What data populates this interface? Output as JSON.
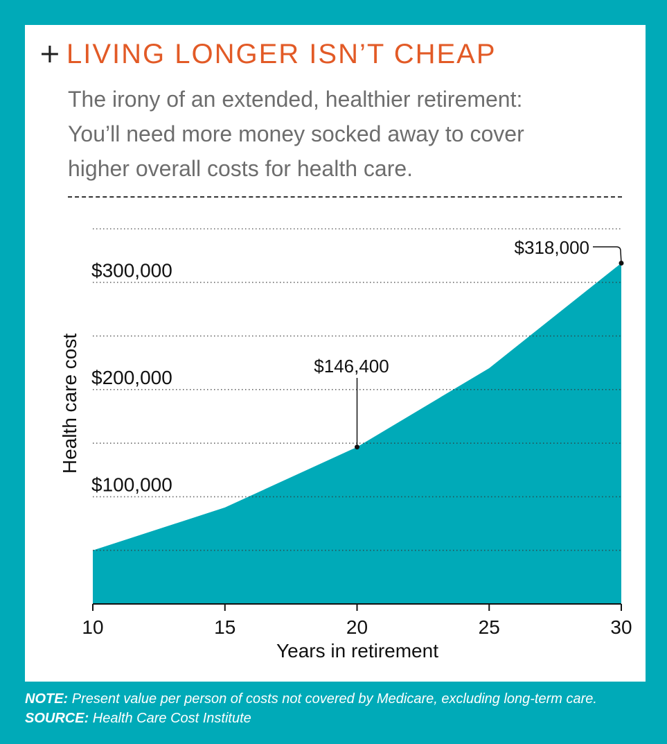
{
  "title": "LIVING LONGER ISN’T CHEAP",
  "subtitle_lines": [
    "The irony of an extended, healthier retirement:",
    "You’ll need more money socked away to cover",
    "higher overall costs for health care."
  ],
  "footer": {
    "note_label": "NOTE:",
    "note_text": " Present value per person of costs not covered by Medicare, excluding long-term care.",
    "source_label": "SOURCE:",
    "source_text": " Health Care Cost Institute"
  },
  "colors": {
    "background": "#00aab8",
    "area": "#00aab8",
    "title": "#e25a26"
  },
  "icons": [
    "plus-icon"
  ],
  "chart_data": {
    "type": "area",
    "x": [
      10,
      15,
      20,
      25,
      30
    ],
    "values": [
      50000,
      90000,
      146400,
      220000,
      318000
    ],
    "xlabel": "Years in retirement",
    "ylabel": "Health care cost",
    "xlim": [
      10,
      30
    ],
    "ylim": [
      0,
      350000
    ],
    "xticks": [
      "10",
      "15",
      "20",
      "25",
      "30"
    ],
    "yticks": [
      {
        "value": 300000,
        "label": "$300,000"
      },
      {
        "value": 200000,
        "label": "$200,000"
      },
      {
        "value": 100000,
        "label": "$100,000"
      }
    ],
    "gridlines": [
      50000,
      100000,
      150000,
      200000,
      250000,
      300000,
      350000
    ],
    "annotations": [
      {
        "x": 20,
        "y": 146400,
        "label": "$146,400"
      },
      {
        "x": 30,
        "y": 318000,
        "label": "$318,000"
      }
    ],
    "grid": true
  }
}
